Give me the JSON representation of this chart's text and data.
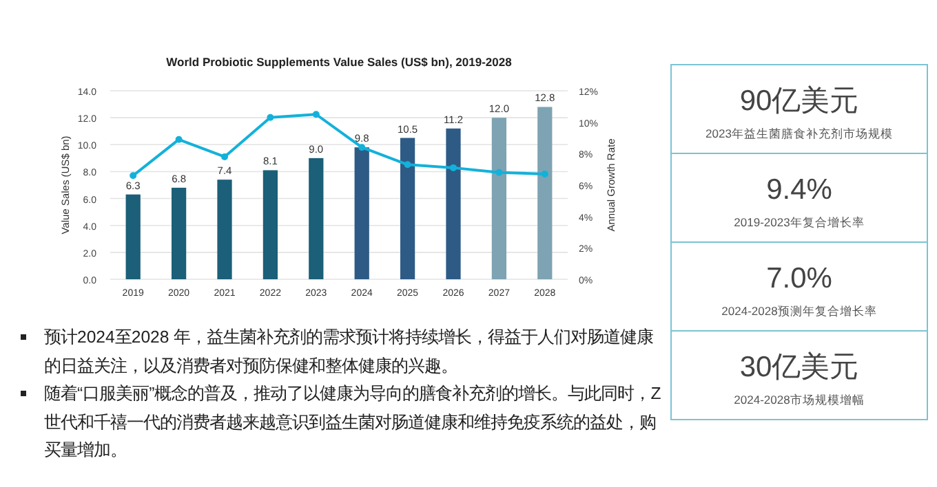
{
  "chart_data": [
    {
      "type": "bar",
      "title": "World Probiotic Supplements Value Sales (US$ bn), 2019-2028",
      "ylabel": "Value Sales (US$ bn)",
      "y2label": "Annual Growth Rate",
      "categories": [
        "2019",
        "2020",
        "2021",
        "2022",
        "2023",
        "2024",
        "2025",
        "2026",
        "2027",
        "2028"
      ],
      "series": [
        {
          "type": "bar",
          "colors": [
            "#1b5f78",
            "#1b5f78",
            "#1b5f78",
            "#1b5f78",
            "#1b5f78",
            "#2d5b86",
            "#2d5b86",
            "#2d5b86",
            "#7ea3b3",
            "#7ea3b3"
          ],
          "values": [
            6.3,
            6.8,
            7.4,
            8.1,
            9.0,
            9.8,
            10.5,
            11.2,
            12.0,
            12.8
          ],
          "value_labels": [
            "6.3",
            "6.8",
            "7.4",
            "8.1",
            "9.0",
            "9.8",
            "10.5",
            "11.2",
            "12.0",
            "12.8"
          ]
        },
        {
          "type": "line",
          "axis": "y2",
          "color": "#13b1da",
          "values": [
            6.6,
            8.9,
            7.8,
            10.3,
            10.5,
            8.4,
            7.3,
            7.1,
            6.8,
            6.7
          ]
        }
      ],
      "ylim": [
        0,
        14
      ],
      "yticks": [
        {
          "value": 0,
          "label": "0.0"
        },
        {
          "value": 2,
          "label": "2.0"
        },
        {
          "value": 4,
          "label": "4.0"
        },
        {
          "value": 6,
          "label": "6.0"
        },
        {
          "value": 8,
          "label": "8.0"
        },
        {
          "value": 10,
          "label": "10.0"
        },
        {
          "value": 12,
          "label": "12.0"
        },
        {
          "value": 14,
          "label": "14.0"
        }
      ],
      "y2lim": [
        0,
        12
      ],
      "y2ticks": [
        {
          "value": 0,
          "label": "0%"
        },
        {
          "value": 2,
          "label": "2%"
        },
        {
          "value": 4,
          "label": "4%"
        },
        {
          "value": 6,
          "label": "6%"
        },
        {
          "value": 8,
          "label": "8%"
        },
        {
          "value": 10,
          "label": "10%"
        },
        {
          "value": 12,
          "label": "12%"
        }
      ],
      "grid": "y",
      "marker": "circle",
      "annotations": [
        "预计2024至2028 年，益生菌补充剂的需求预计将持续增长，得益于人们对肠道健康的日益关注，以及消费者对预防保健和整体健康的兴趣。",
        "随着“口服美丽”概念的普及，推动了以健康为导向的膳食补充剂的增长。与此同时，Z 世代和千禧一代的消费者越来越意识到益生菌对肠道健康和维持免疫系统的益处，购买量增加。"
      ]
    },
    {
      "type": "other",
      "annotations": [
        "90亿美元",
        "2023年益生菌膳食补充剂市场规模",
        "9.4%",
        "2019-2023年复合增长率",
        "7.0%",
        "2024-2028预测年复合增长率",
        "30亿美元",
        "2024-2028市场规模增幅"
      ]
    }
  ]
}
